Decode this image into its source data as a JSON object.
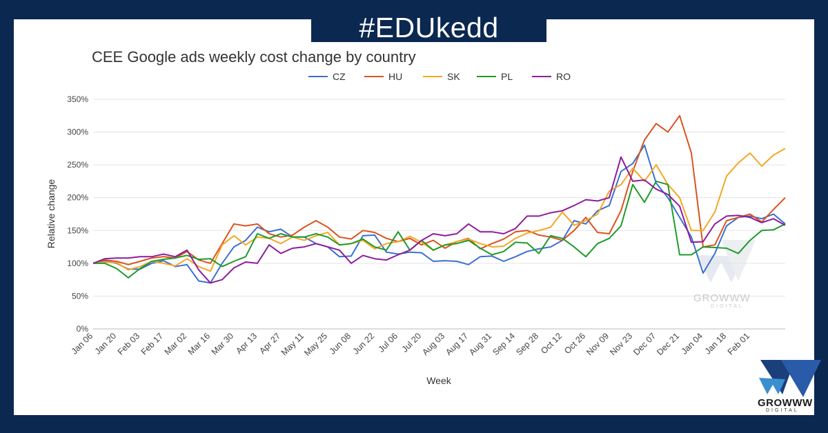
{
  "banner": {
    "hashtag": "#EDUkedd"
  },
  "brand": {
    "name": "GROWWW",
    "sub": "DIGITAL"
  },
  "colors": {
    "background": "#0b2850",
    "CZ": "#3a6fcf",
    "HU": "#d9531e",
    "SK": "#f5a623",
    "PL": "#1e9b29",
    "RO": "#8e1b9e"
  },
  "chart_data": {
    "type": "line",
    "title": "CEE Google ads weekly cost change by country",
    "xlabel": "Week",
    "ylabel": "Relative change",
    "ylim": [
      0,
      350
    ],
    "yticks": [
      "0%",
      "50%",
      "100%",
      "150%",
      "200%",
      "250%",
      "300%",
      "350%"
    ],
    "ytick_values": [
      0,
      50,
      100,
      150,
      200,
      250,
      300,
      350
    ],
    "grid": true,
    "legend_position": "top-center",
    "xtick_labels": [
      "Jan 06",
      "Jan 20",
      "Feb 03",
      "Feb 17",
      "Mar 02",
      "Mar 16",
      "Mar 30",
      "Apr 13",
      "Apr 27",
      "May 11",
      "May 25",
      "Jun 08",
      "Jun 22",
      "Jul 06",
      "Jul 20",
      "Aug 03",
      "Aug 17",
      "Aug 31",
      "Sep 14",
      "Sep 28",
      "Oct 12",
      "Oct 26",
      "Nov 09",
      "Nov 23",
      "Dec 07",
      "Dec 21",
      "Jan 04",
      "Jan 18",
      "Feb 01"
    ],
    "series": [
      {
        "name": "CZ",
        "values": [
          100,
          104,
          100,
          91,
          91,
          100,
          104,
          95,
          98,
          73,
          70,
          100,
          125,
          135,
          155,
          148,
          152,
          140,
          140,
          130,
          125,
          110,
          111,
          142,
          143,
          117,
          114,
          117,
          116,
          103,
          104,
          103,
          98,
          110,
          111,
          103,
          110,
          118,
          122,
          125,
          135,
          165,
          160,
          180,
          188,
          240,
          252,
          280,
          222,
          200,
          170,
          140,
          85,
          115,
          157,
          170,
          172,
          168,
          175,
          160
        ]
      },
      {
        "name": "HU",
        "values": [
          100,
          105,
          103,
          98,
          103,
          108,
          110,
          108,
          118,
          105,
          100,
          130,
          160,
          157,
          160,
          145,
          140,
          143,
          155,
          165,
          155,
          140,
          137,
          150,
          147,
          138,
          133,
          138,
          128,
          135,
          123,
          133,
          138,
          122,
          130,
          137,
          148,
          150,
          143,
          140,
          135,
          150,
          170,
          147,
          145,
          180,
          240,
          288,
          313,
          300,
          325,
          268,
          125,
          128,
          165,
          170,
          175,
          163,
          182,
          200
        ]
      },
      {
        "name": "SK",
        "values": [
          100,
          102,
          101,
          90,
          95,
          103,
          100,
          96,
          107,
          95,
          88,
          128,
          142,
          128,
          140,
          138,
          130,
          140,
          135,
          142,
          147,
          128,
          130,
          135,
          122,
          130,
          133,
          141,
          132,
          120,
          128,
          133,
          137,
          130,
          125,
          126,
          138,
          146,
          150,
          155,
          178,
          158,
          165,
          175,
          210,
          220,
          245,
          225,
          250,
          220,
          200,
          150,
          150,
          178,
          233,
          253,
          268,
          248,
          265,
          275
        ]
      },
      {
        "name": "PL",
        "values": [
          100,
          100,
          92,
          78,
          92,
          103,
          106,
          108,
          112,
          106,
          107,
          95,
          103,
          110,
          145,
          138,
          145,
          140,
          140,
          145,
          140,
          128,
          130,
          137,
          125,
          120,
          148,
          120,
          135,
          120,
          128,
          130,
          135,
          123,
          113,
          118,
          132,
          131,
          115,
          142,
          138,
          125,
          110,
          130,
          138,
          157,
          220,
          193,
          225,
          220,
          113,
          113,
          125,
          124,
          123,
          115,
          135,
          150,
          151,
          160
        ]
      },
      {
        "name": "RO",
        "values": [
          100,
          107,
          108,
          108,
          110,
          110,
          114,
          110,
          120,
          90,
          70,
          75,
          93,
          102,
          100,
          128,
          115,
          123,
          125,
          130,
          125,
          120,
          100,
          112,
          107,
          105,
          113,
          120,
          135,
          145,
          142,
          145,
          160,
          148,
          148,
          145,
          153,
          172,
          172,
          177,
          180,
          188,
          197,
          195,
          200,
          262,
          225,
          227,
          213,
          205,
          187,
          132,
          133,
          160,
          172,
          173,
          170,
          162,
          168,
          158
        ]
      }
    ]
  }
}
